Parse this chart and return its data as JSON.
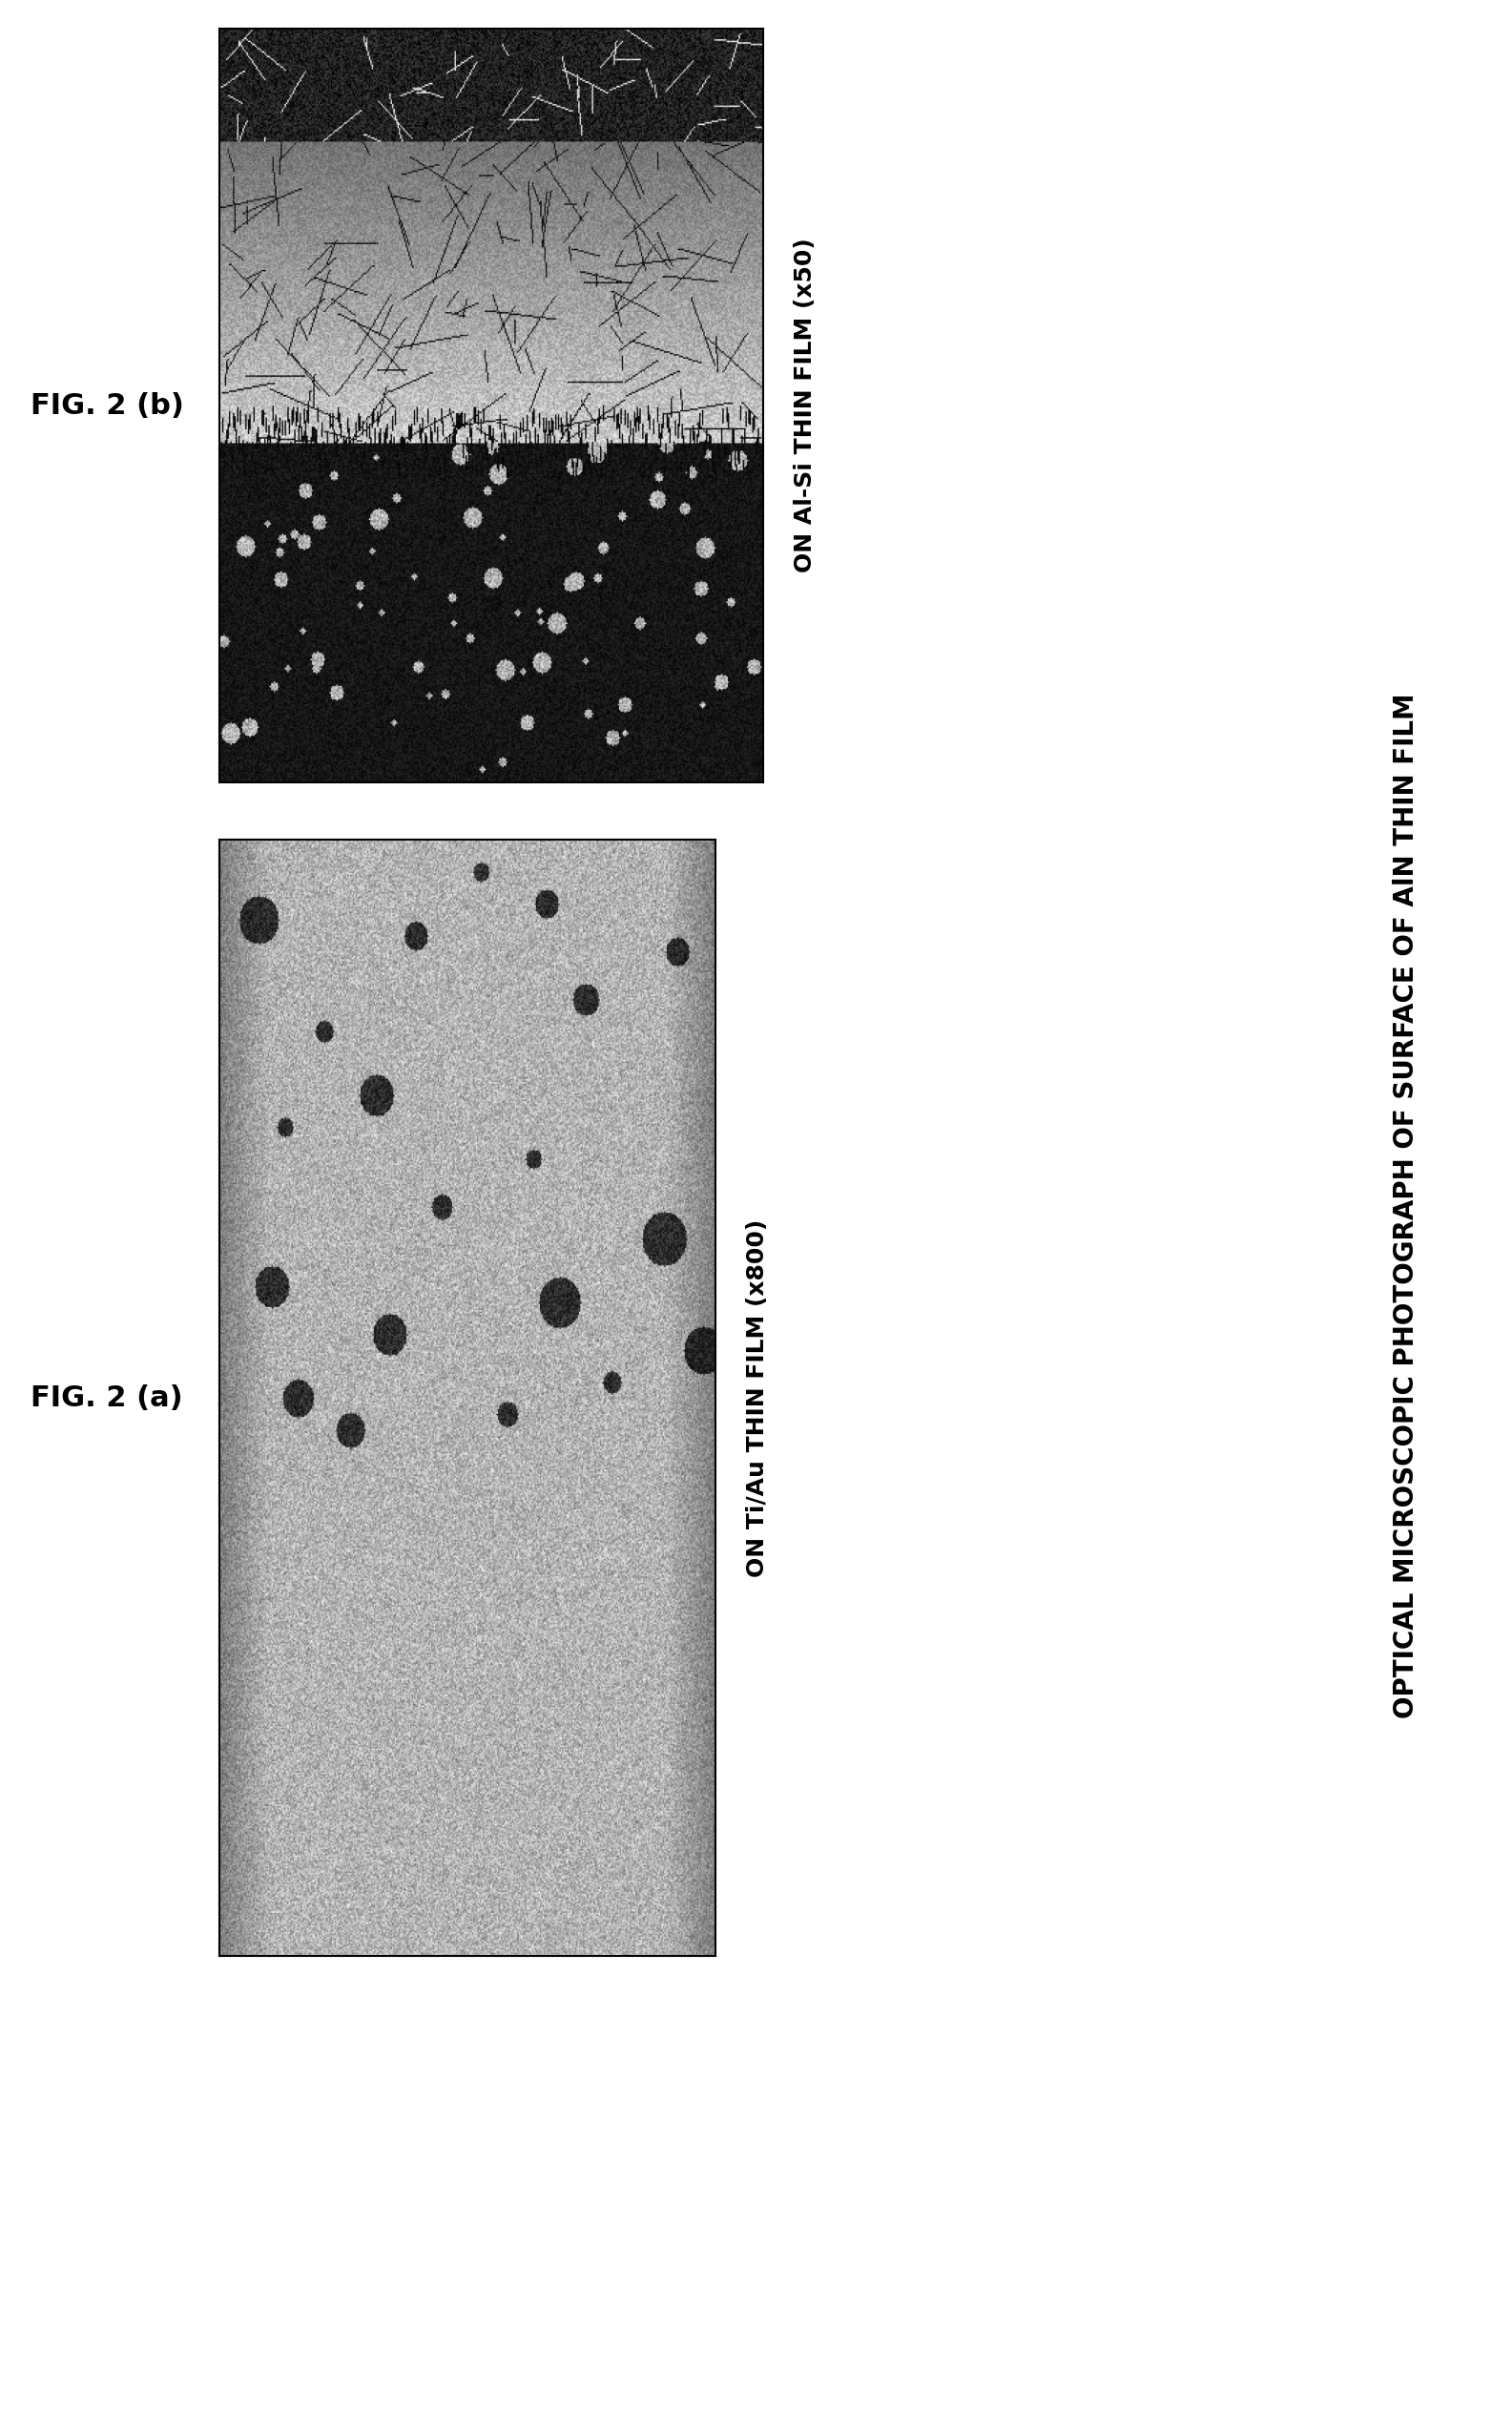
{
  "fig_title_rotated": "OPTICAL MICROSCOPIC PHOTOGRAPH OF SURFACE OF AlN THIN FILM",
  "label_a": "FIG. 2 (a)",
  "label_b": "FIG. 2 (b)",
  "caption_a": "ON Ti/Au THIN FILM (x800)",
  "caption_b": "ON Al-Si THIN FILM (x50)",
  "bg_color": "#ffffff",
  "text_color": "#000000",
  "fig_width": 15.85,
  "fig_height": 25.28
}
